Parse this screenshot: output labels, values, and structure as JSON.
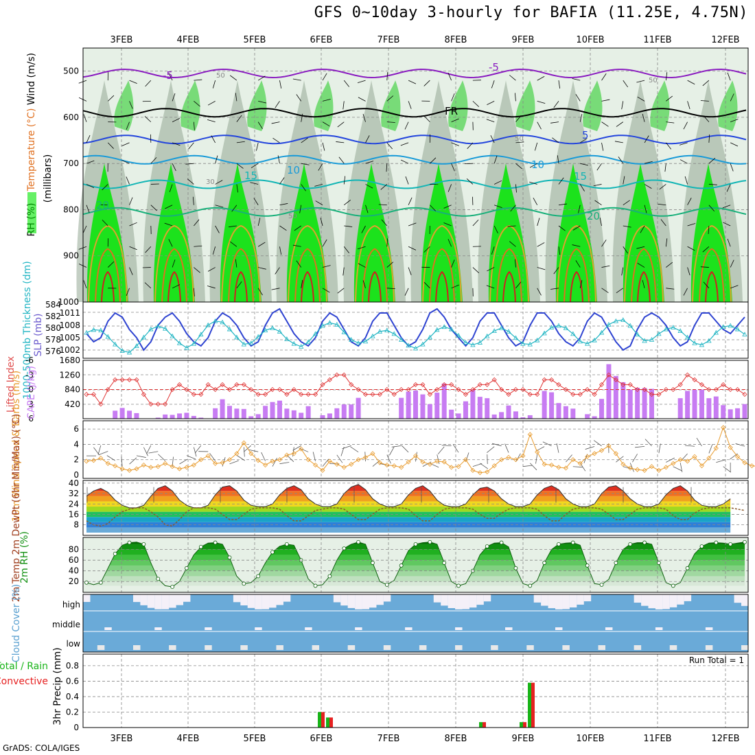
{
  "title": "GFS 0~10day 3-hourly for BAFIA (11.25E, 4.75N)",
  "footer": "GrADS: COLA/IGES",
  "dates": [
    "3FEB",
    "4FEB",
    "5FEB",
    "6FEB",
    "7FEB",
    "8FEB",
    "9FEB",
    "10FEB",
    "11FEB",
    "12FEB"
  ],
  "colors": {
    "rh_green": "#00e600",
    "grey1": "#e6f0e6",
    "grey2": "#bcc9bc",
    "grey3": "#93a893",
    "temp_line": "#2e43d1",
    "thick_line": "#21b5c3",
    "cape_bar": "#c77cf2",
    "li_line": "#e03535",
    "wind_line": "#e89b2d",
    "cloud_blue": "#6aaad8",
    "precip_green": "#18b418",
    "precip_red": "#e62020"
  },
  "chart_data": [
    {
      "type": "heatmap",
      "panel": "upper-air",
      "ylabel_parts": [
        "RH (%)",
        "Temperature (°C)",
        "Wind (m/s)"
      ],
      "ylabel2": "(millibars)",
      "yticks": [
        500,
        600,
        700,
        800,
        900,
        1000
      ],
      "contour_labels": [
        "-5",
        "-5",
        "FR",
        "5",
        "10",
        "10",
        "15",
        "15",
        "20",
        "20",
        "30",
        "50",
        "50",
        "50",
        "50"
      ]
    },
    {
      "type": "line",
      "panel": "thickness-slp",
      "ylabel_left": "1000-500mb Thickness (dm)",
      "ylabel_right": "SLP (mb)",
      "yticks_left": [
        576,
        578,
        580,
        582,
        584
      ],
      "yticks_right": [
        1002,
        1005,
        1008,
        1011
      ],
      "ylim_right": [
        1001,
        1013
      ],
      "series": [
        {
          "name": "SLP (mb)",
          "values": [
            1006,
            1004,
            1005,
            1009,
            1011,
            1010,
            1007,
            1005,
            1002,
            1004,
            1008,
            1010,
            1011,
            1009,
            1006,
            1004,
            1003,
            1005,
            1009,
            1011,
            1010,
            1008,
            1005,
            1003,
            1004,
            1008,
            1011,
            1012,
            1009,
            1006,
            1004,
            1003,
            1005,
            1009,
            1011,
            1010,
            1007,
            1004,
            1003,
            1005,
            1009,
            1011,
            1011,
            1008,
            1005,
            1003,
            1004,
            1007,
            1011,
            1012,
            1010,
            1007,
            1005,
            1003,
            1005,
            1009,
            1011,
            1011,
            1008,
            1005,
            1003,
            1004,
            1008,
            1011,
            1011,
            1009,
            1006,
            1004,
            1003,
            1005,
            1009,
            1011,
            1010,
            1007,
            1004,
            1002,
            1003,
            1007,
            1010,
            1011,
            1010,
            1008,
            1005,
            1003,
            1004,
            1008,
            1011,
            1011,
            1009,
            1007,
            1006,
            1008,
            1010
          ]
        },
        {
          "name": "Thickness (dm)",
          "values": [
            579.2,
            579.7,
            579.6,
            578.5,
            577.2,
            576.1,
            575.8,
            576.9,
            578.4,
            579.8,
            580.3,
            579.9,
            578.6,
            577.4,
            576.6,
            577.3,
            578.9,
            580.5,
            581.2,
            581.0,
            579.8,
            578.4,
            577.2,
            577.4,
            578.5,
            579.6,
            580.0,
            579.4,
            578.1,
            577.3,
            576.8,
            577.6,
            579.0,
            580.4,
            580.9,
            580.6,
            579.3,
            578.0,
            577.4,
            577.7,
            578.6,
            579.4,
            579.6,
            579.0,
            578.0,
            577.0,
            576.5,
            577.2,
            578.4,
            579.7,
            580.2,
            579.8,
            578.7,
            577.5,
            577.1,
            577.5,
            578.6,
            579.5,
            580.0,
            579.4,
            578.3,
            577.3,
            577.2,
            577.9,
            579.1,
            580.1,
            580.4,
            580.0,
            579.0,
            577.7,
            577.3,
            577.9,
            579.2,
            580.6,
            581.2,
            581.4,
            580.4,
            578.9,
            577.8,
            578.0,
            579.0,
            579.8,
            580.1,
            579.5,
            578.4,
            577.4,
            577.1,
            577.8,
            579.2,
            580.2,
            580.4,
            579.8,
            578.9
          ]
        }
      ]
    },
    {
      "type": "bar",
      "panel": "cape-li",
      "ylabel_left": "Lifted Index",
      "ylabel_right": "CAPE (J/kg)",
      "yticks_left": [
        -6,
        -3,
        0,
        3,
        6
      ],
      "yticks_right": [
        420,
        840,
        1260,
        1680
      ],
      "series": [
        {
          "name": "CAPE (J/kg)",
          "values": [
            0,
            0,
            0,
            0,
            230,
            310,
            230,
            160,
            0,
            0,
            30,
            120,
            110,
            150,
            170,
            80,
            30,
            0,
            300,
            560,
            370,
            290,
            280,
            70,
            130,
            370,
            480,
            520,
            290,
            240,
            170,
            360,
            0,
            100,
            150,
            300,
            410,
            410,
            600,
            0,
            0,
            0,
            0,
            0,
            600,
            780,
            810,
            700,
            420,
            750,
            1010,
            260,
            150,
            500,
            840,
            630,
            590,
            120,
            190,
            380,
            210,
            40,
            100,
            0,
            800,
            760,
            450,
            360,
            290,
            0,
            130,
            70,
            570,
            1570,
            1230,
            1050,
            840,
            890,
            880,
            860,
            0,
            0,
            0,
            590,
            800,
            830,
            840,
            590,
            640,
            390,
            270,
            300,
            420
          ]
        },
        {
          "name": "Lifted Index",
          "values": [
            1,
            1,
            3,
            0,
            -2,
            -2,
            -2,
            -2,
            1,
            3,
            3,
            3,
            0,
            -1,
            0,
            1,
            1,
            -1,
            0,
            -1,
            0,
            -1,
            -1,
            0,
            1,
            1,
            0,
            0,
            1,
            0,
            1,
            1,
            1,
            -1,
            -2,
            -3,
            -3,
            -1,
            0,
            1,
            1,
            1,
            0,
            1,
            0,
            0,
            -1,
            -1,
            1,
            0,
            -1,
            -1,
            0,
            1,
            0,
            -1,
            -1,
            -2,
            0,
            1,
            0,
            0,
            1,
            1,
            -2,
            -2,
            -1,
            0,
            1,
            1,
            0,
            1,
            -1,
            -3,
            -2,
            -1,
            -1,
            0,
            0,
            1,
            1,
            0,
            0,
            -1,
            -3,
            -2,
            -1,
            0,
            0,
            -1,
            0,
            0,
            1
          ]
        }
      ]
    },
    {
      "type": "line",
      "panel": "wind-10m",
      "ylabel": "10m Wind Speed & Barbs (m/s)",
      "yticks": [
        0,
        2,
        4,
        6
      ],
      "ylim": [
        0,
        7
      ],
      "series": [
        {
          "name": "10m Wind Speed",
          "values": [
            1.8,
            1.9,
            2.2,
            1.5,
            1.2,
            0.8,
            0.6,
            0.8,
            1.3,
            1.0,
            1.1,
            1.5,
            1.1,
            0.8,
            1.0,
            1.3,
            2.0,
            2.5,
            1.5,
            1.6,
            2.0,
            2.8,
            4.2,
            2.8,
            1.9,
            1.3,
            1.8,
            2.0,
            2.6,
            2.8,
            3.4,
            2.0,
            1.3,
            0.6,
            1.8,
            1.4,
            1.0,
            1.4,
            2.0,
            2.3,
            2.8,
            1.6,
            1.3,
            1.2,
            1.0,
            1.7,
            2.5,
            1.7,
            1.4,
            1.8,
            1.7,
            1.0,
            1.1,
            2.0,
            0.6,
            0.3,
            0.4,
            1.2,
            2.0,
            2.3,
            2.0,
            2.5,
            5.3,
            3.0,
            1.4,
            1.3,
            1.0,
            0.9,
            2.0,
            1.5,
            2.4,
            2.8,
            3.2,
            3.8,
            2.8,
            1.4,
            0.9,
            0.7,
            0.6,
            1.1,
            0.6,
            1.0,
            1.5,
            2.0,
            1.8,
            2.4,
            1.2,
            2.2,
            3.5,
            6.2,
            3.6,
            2.4,
            1.6,
            1.2,
            1.1,
            0.8,
            1.2
          ]
        }
      ]
    },
    {
      "type": "area",
      "panel": "temp-2m",
      "ylabel": "2m Temp 2m DewPt (6hr Min/Max) (°C)",
      "yticks": [
        8,
        16,
        24,
        32,
        40
      ],
      "series": [
        {
          "name": "2m Temp",
          "values": [
            30,
            34,
            36,
            33,
            27,
            23,
            21,
            21,
            23,
            30,
            36,
            38,
            34,
            27,
            23,
            21,
            21,
            23,
            31,
            37,
            38,
            34,
            27,
            23,
            22,
            22,
            24,
            31,
            36,
            38,
            35,
            28,
            24,
            22,
            22,
            24,
            32,
            37,
            39,
            35,
            28,
            24,
            22,
            22,
            24,
            31,
            36,
            38,
            34,
            27,
            23,
            22,
            22,
            24,
            31,
            36,
            37,
            34,
            28,
            24,
            22,
            22,
            24,
            31,
            36,
            38,
            35,
            28,
            24,
            22,
            22,
            24,
            32,
            37,
            38,
            34,
            28,
            24,
            22,
            22,
            24,
            31,
            36,
            38,
            34,
            27,
            23,
            22,
            22,
            24,
            28
          ]
        },
        {
          "name": "2m DewPt",
          "values": [
            11,
            8,
            7,
            9,
            14,
            18,
            20,
            21,
            21,
            18,
            14,
            8,
            7,
            12,
            18,
            21,
            21,
            21,
            20,
            16,
            12,
            12,
            16,
            20,
            21,
            21,
            21,
            20,
            15,
            11,
            11,
            15,
            19,
            20,
            21,
            21,
            20,
            16,
            12,
            12,
            16,
            20,
            21,
            21,
            21,
            20,
            15,
            11,
            11,
            16,
            20,
            21,
            21,
            21,
            20,
            16,
            13,
            13,
            17,
            20,
            21,
            21,
            21,
            20,
            15,
            11,
            11,
            16,
            20,
            21,
            21,
            21,
            20,
            16,
            12,
            12,
            16,
            20,
            21,
            21,
            21,
            20,
            15,
            12,
            12,
            17,
            20,
            21,
            21,
            21,
            21,
            20,
            19
          ]
        }
      ]
    },
    {
      "type": "area",
      "panel": "rh-2m",
      "ylabel": "2m RH (%)",
      "yticks": [
        20,
        40,
        60,
        80
      ],
      "series": [
        {
          "name": "2m RH",
          "values": [
            18,
            14,
            18,
            45,
            72,
            88,
            93,
            94,
            90,
            55,
            25,
            12,
            10,
            20,
            45,
            70,
            85,
            92,
            93,
            90,
            65,
            30,
            16,
            18,
            30,
            55,
            75,
            86,
            90,
            88,
            60,
            25,
            12,
            14,
            30,
            60,
            82,
            90,
            94,
            90,
            55,
            20,
            14,
            22,
            50,
            78,
            90,
            93,
            94,
            90,
            55,
            20,
            12,
            16,
            40,
            70,
            86,
            92,
            93,
            85,
            45,
            16,
            12,
            22,
            55,
            80,
            90,
            92,
            93,
            88,
            50,
            16,
            14,
            24,
            55,
            80,
            90,
            93,
            93,
            90,
            55,
            18,
            12,
            18,
            45,
            72,
            86,
            92,
            93,
            92,
            90,
            92,
            94
          ]
        }
      ]
    },
    {
      "type": "bar",
      "panel": "cloud-cover",
      "ylabel": "Cloud Cover (%)",
      "categories": [
        "high",
        "middle",
        "low"
      ]
    },
    {
      "type": "bar",
      "panel": "precip",
      "ylabel_parts": [
        "Total / Rain",
        "Convective"
      ],
      "ylabel2": "3hr Precip (mm)",
      "yticks": [
        0,
        0.2,
        0.4,
        0.6,
        0.8
      ],
      "annotation": "Run Total = 1",
      "series": [
        {
          "name": "Total / Rain",
          "values": [
            {
              "x": "6FEB 00Z",
              "y": 0.2
            },
            {
              "x": "6FEB 03Z",
              "y": 0.13
            },
            {
              "x": "8FEB 09Z",
              "y": 0.07
            },
            {
              "x": "9FEB 00Z",
              "y": 0.07
            },
            {
              "x": "9FEB 03Z",
              "y": 0.58
            }
          ]
        }
      ]
    }
  ]
}
